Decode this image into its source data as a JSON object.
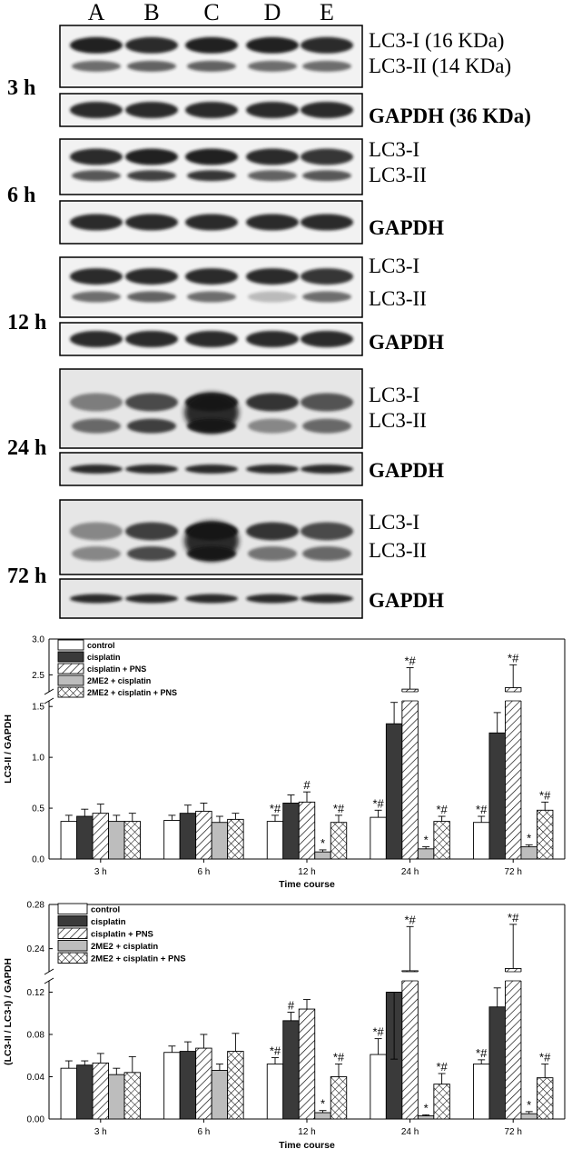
{
  "blots": {
    "lanes": [
      "A",
      "B",
      "C",
      "D",
      "E"
    ],
    "timepoints": [
      {
        "time": "3 h",
        "labels": [
          "LC3-I (16 KDa)",
          "LC3-II (14 KDa)"
        ],
        "gapdh": "GAPDH (36 KDa)"
      },
      {
        "time": "6 h",
        "labels": [
          "LC3-I",
          "LC3-II"
        ],
        "gapdh": "GAPDH"
      },
      {
        "time": "12 h",
        "labels": [
          "LC3-I",
          "LC3-II"
        ],
        "gapdh": "GAPDH"
      },
      {
        "time": "24 h",
        "labels": [
          "LC3-I",
          "LC3-II"
        ],
        "gapdh": "GAPDH"
      },
      {
        "time": "72 h",
        "labels": [
          "LC3-I",
          "LC3-II"
        ],
        "gapdh": "GAPDH"
      }
    ]
  },
  "chart_data": [
    {
      "type": "bar",
      "categories": [
        "3 h",
        "6 h",
        "12 h",
        "24 h",
        "72 h"
      ],
      "xlabel": "Time course",
      "ylabel": "LC3-II / GAPDH",
      "ylim": [
        0,
        3.0
      ],
      "axis_break": [
        1.6,
        2.2
      ],
      "yticks_lower": [
        "0.0",
        "0.5",
        "1.0",
        "1.5"
      ],
      "yticks_upper": [
        "2.5",
        "3.0"
      ],
      "legend_position": "top-left",
      "series": [
        {
          "name": "control",
          "values": [
            0.37,
            0.38,
            0.37,
            0.41,
            0.36
          ],
          "errors": [
            0.06,
            0.05,
            0.06,
            0.07,
            0.06
          ],
          "labels": [
            "",
            "",
            "*#",
            "*#",
            "*#"
          ]
        },
        {
          "name": "cisplatin",
          "values": [
            0.42,
            0.45,
            0.55,
            1.33,
            1.24
          ],
          "errors": [
            0.07,
            0.08,
            0.08,
            0.21,
            0.2
          ],
          "labels": [
            "",
            "",
            "",
            "",
            ""
          ]
        },
        {
          "name": "cisplatin + PNS",
          "values": [
            0.45,
            0.47,
            0.56,
            2.3,
            2.32
          ],
          "errors": [
            0.09,
            0.08,
            0.1,
            0.3,
            0.32
          ],
          "labels": [
            "",
            "",
            "#",
            "*#",
            "*#"
          ]
        },
        {
          "name": "2ME2 + cisplatin",
          "values": [
            0.37,
            0.36,
            0.07,
            0.1,
            0.12
          ],
          "errors": [
            0.06,
            0.06,
            0.02,
            0.02,
            0.02
          ],
          "labels": [
            "",
            "",
            "*",
            "*",
            "*"
          ]
        },
        {
          "name": "2ME2 + cisplatin + PNS",
          "values": [
            0.37,
            0.39,
            0.36,
            0.37,
            0.48
          ],
          "errors": [
            0.08,
            0.06,
            0.07,
            0.05,
            0.08
          ],
          "labels": [
            "",
            "",
            "*#",
            "*#",
            "*#"
          ]
        }
      ]
    },
    {
      "type": "bar",
      "categories": [
        "3 h",
        "6 h",
        "12 h",
        "24 h",
        "72 h"
      ],
      "xlabel": "Time course",
      "ylabel": "(LC3-II / LC3-I) / GAPDH",
      "ylim": [
        0,
        0.28
      ],
      "axis_break": [
        0.135,
        0.215
      ],
      "yticks_lower": [
        "0.00",
        "0.04",
        "0.08",
        "0.12"
      ],
      "yticks_upper": [
        "0.24",
        "0.28"
      ],
      "legend_position": "top-left",
      "series": [
        {
          "name": "control",
          "values": [
            0.048,
            0.063,
            0.052,
            0.061,
            0.052
          ],
          "errors": [
            0.007,
            0.006,
            0.006,
            0.015,
            0.004
          ],
          "labels": [
            "",
            "",
            "*#",
            "*#",
            "*#"
          ]
        },
        {
          "name": "cisplatin",
          "values": [
            0.051,
            0.064,
            0.093,
            0.12,
            0.106
          ],
          "errors": [
            0.004,
            0.009,
            0.008,
            0.02,
            0.018
          ],
          "labels": [
            "",
            "",
            "#",
            "",
            ""
          ]
        },
        {
          "name": "cisplatin + PNS",
          "values": [
            0.053,
            0.067,
            0.104,
            0.22,
            0.222
          ],
          "errors": [
            0.009,
            0.013,
            0.009,
            0.04,
            0.04
          ],
          "labels": [
            "",
            "",
            "",
            "*#",
            "*#"
          ]
        },
        {
          "name": "2ME2 + cisplatin",
          "values": [
            0.042,
            0.046,
            0.006,
            0.003,
            0.005
          ],
          "errors": [
            0.006,
            0.006,
            0.002,
            0.001,
            0.002
          ],
          "labels": [
            "",
            "",
            "*",
            "*",
            "*"
          ]
        },
        {
          "name": "2ME2 + cisplatin + PNS",
          "values": [
            0.044,
            0.064,
            0.04,
            0.033,
            0.039
          ],
          "errors": [
            0.015,
            0.017,
            0.012,
            0.01,
            0.013
          ],
          "labels": [
            "",
            "",
            "*#",
            "*#",
            "*#"
          ]
        }
      ]
    }
  ],
  "styles": {
    "bar_outline": "#000000",
    "fill_control": "#ffffff",
    "fill_cisplatin": "#3a3a3a",
    "fill_2me2": "#bdbdbd",
    "band_dark": "#141414",
    "membrane": "#f2f2f2"
  }
}
